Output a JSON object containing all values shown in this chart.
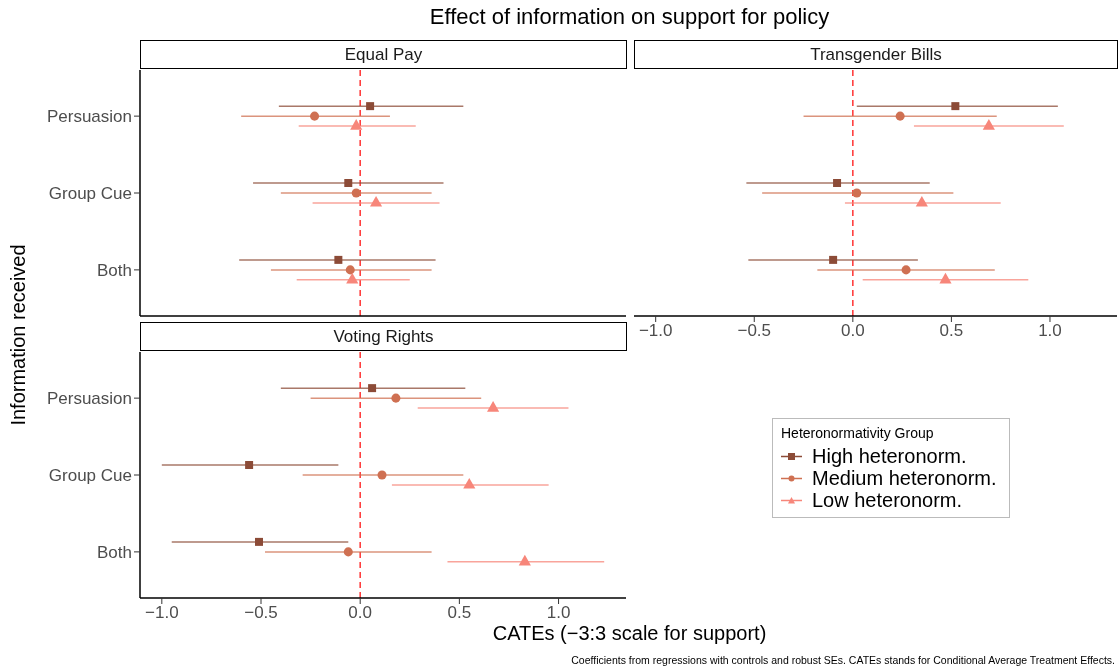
{
  "chart_data": [
    {
      "type": "scatter",
      "title": "Equal Pay",
      "orientation": "horizontal",
      "categories": [
        "Persuasion",
        "Group Cue",
        "Both"
      ],
      "annotations": [
        "Effect of information on support for policy",
        "Coefficients from regressions with controls and robust SEs. CATEs stands for Conditional Average Treatment Effects."
      ],
      "xlabel": "CATEs (−3:3 scale for support)",
      "ylabel": "Information received",
      "legend": "bottom right",
      "legend_title": "Heteronormativity Group",
      "xlim": [
        -1.11,
        1.34
      ],
      "tick_labels": "y",
      "ref_lines": [
        {
          "axis": "x",
          "value": 0,
          "color": "#ff3333",
          "line_style": "dashed"
        }
      ],
      "series": [
        {
          "name": "High heteronorm.",
          "color": "#8c4b37",
          "marker": "square",
          "values": [
            0.05,
            -0.06,
            -0.11
          ],
          "errors": [
            [
              -0.41,
              0.52
            ],
            [
              -0.54,
              0.42
            ],
            [
              -0.61,
              0.38
            ]
          ]
        },
        {
          "name": "Medium heteronorm.",
          "color": "#cf7052",
          "marker": "circle",
          "values": [
            -0.23,
            -0.02,
            -0.05
          ],
          "errors": [
            [
              -0.6,
              0.15
            ],
            [
              -0.4,
              0.36
            ],
            [
              -0.45,
              0.36
            ]
          ]
        },
        {
          "name": "Low heteronorm.",
          "color": "#f7867a",
          "marker": "triangle",
          "values": [
            -0.02,
            0.08,
            -0.04
          ],
          "errors": [
            [
              -0.31,
              0.28
            ],
            [
              -0.24,
              0.4
            ],
            [
              -0.32,
              0.25
            ]
          ]
        }
      ]
    },
    {
      "type": "scatter",
      "title": "Transgender Bills",
      "orientation": "horizontal",
      "xlim": [
        -1.11,
        1.34
      ],
      "xticks": [
        {
          "value": -1,
          "label": "−1.0"
        },
        {
          "value": -0.5,
          "label": "−0.5"
        },
        {
          "value": 0,
          "label": "0.0"
        },
        {
          "value": 0.5,
          "label": "0.5"
        },
        {
          "value": 1,
          "label": "1.0"
        }
      ],
      "tick_labels": "x",
      "ref_lines": [
        {
          "axis": "x",
          "value": 0,
          "color": "#ff3333",
          "line_style": "dashed"
        }
      ],
      "series": [
        {
          "color": "#8c4b37",
          "marker": "square",
          "values": [
            0.52,
            -0.08,
            -0.1
          ],
          "errors": [
            [
              0.02,
              1.04
            ],
            [
              -0.54,
              0.39
            ],
            [
              -0.53,
              0.33
            ]
          ]
        },
        {
          "color": "#cf7052",
          "marker": "circle",
          "values": [
            0.24,
            0.02,
            0.27
          ],
          "errors": [
            [
              -0.25,
              0.73
            ],
            [
              -0.46,
              0.51
            ],
            [
              -0.18,
              0.72
            ]
          ]
        },
        {
          "color": "#f7867a",
          "marker": "triangle",
          "values": [
            0.69,
            0.35,
            0.47
          ],
          "errors": [
            [
              0.31,
              1.07
            ],
            [
              -0.04,
              0.75
            ],
            [
              0.05,
              0.89
            ]
          ]
        }
      ]
    },
    {
      "type": "scatter",
      "title": "Voting Rights",
      "orientation": "horizontal",
      "categories": [
        "Persuasion",
        "Group Cue",
        "Both"
      ],
      "xlim": [
        -1.11,
        1.34
      ],
      "xticks": [
        {
          "value": -1,
          "label": "−1.0"
        },
        {
          "value": -0.5,
          "label": "−0.5"
        },
        {
          "value": 0,
          "label": "0.0"
        },
        {
          "value": 0.5,
          "label": "0.5"
        },
        {
          "value": 1,
          "label": "1.0"
        }
      ],
      "ref_lines": [
        {
          "axis": "x",
          "value": 0,
          "color": "#ff3333",
          "line_style": "dashed"
        }
      ],
      "series": [
        {
          "color": "#8c4b37",
          "marker": "square",
          "values": [
            0.06,
            -0.56,
            -0.51
          ],
          "errors": [
            [
              -0.4,
              0.53
            ],
            [
              -1.0,
              -0.11
            ],
            [
              -0.95,
              -0.06
            ]
          ]
        },
        {
          "color": "#cf7052",
          "marker": "circle",
          "values": [
            0.18,
            0.11,
            -0.06
          ],
          "errors": [
            [
              -0.25,
              0.61
            ],
            [
              -0.29,
              0.52
            ],
            [
              -0.48,
              0.36
            ]
          ]
        },
        {
          "color": "#f7867a",
          "marker": "triangle",
          "values": [
            0.67,
            0.55,
            0.83
          ],
          "errors": [
            [
              0.29,
              1.05
            ],
            [
              0.16,
              0.95
            ],
            [
              0.44,
              1.23
            ]
          ]
        }
      ]
    }
  ]
}
